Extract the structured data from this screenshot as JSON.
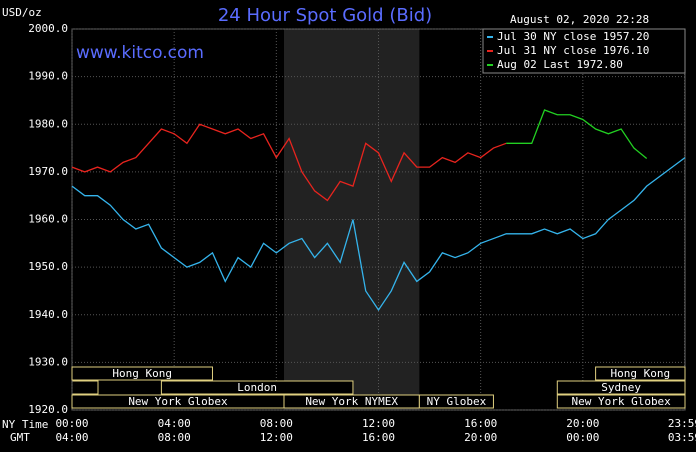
{
  "chart_data": {
    "type": "line",
    "title": "24 Hour Spot Gold (Bid)",
    "timestamp": "August 02, 2020 22:28",
    "site": "www.kitco.com",
    "y_label": "USD/oz",
    "x_label": "NY Time",
    "x2_label": "GMT",
    "x": [
      0,
      0.5,
      1,
      1.5,
      2,
      2.5,
      3,
      3.5,
      4,
      4.5,
      5,
      5.5,
      6,
      6.5,
      7,
      7.5,
      8,
      8.5,
      9,
      9.5,
      10,
      10.5,
      11,
      11.5,
      12,
      12.5,
      13,
      13.5,
      14,
      14.5,
      15,
      15.5,
      16,
      16.5,
      17,
      17.5,
      18,
      18.5,
      19,
      19.5,
      20,
      20.5,
      21,
      21.5,
      22,
      22.5,
      23,
      23.5,
      24
    ],
    "series": [
      {
        "name": "Jul 30 NY close 1957.20",
        "color": "#35b4ec",
        "values": [
          1967,
          1965,
          1965,
          1963,
          1960,
          1958,
          1959,
          1954,
          1952,
          1950,
          1951,
          1953,
          1947,
          1952,
          1950,
          1955,
          1953,
          1955,
          1956,
          1952,
          1955,
          1951,
          1960,
          1945,
          1941,
          1945,
          1951,
          1947,
          1949,
          1953,
          1952,
          1953,
          1955,
          1956,
          1957,
          1957,
          1957,
          1958,
          1957,
          1958,
          1956,
          1957,
          1960,
          1962,
          1964,
          1967,
          1969,
          1971,
          1973
        ]
      },
      {
        "name": "Jul 31 NY close 1976.10",
        "color": "#e8241e",
        "values": [
          1971,
          1970,
          1971,
          1970,
          1972,
          1973,
          1976,
          1979,
          1978,
          1976,
          1980,
          1979,
          1978,
          1979,
          1977,
          1978,
          1973,
          1977,
          1970,
          1966,
          1964,
          1968,
          1967,
          1976,
          1974,
          1968,
          1974,
          1971,
          1971,
          1973,
          1972,
          1974,
          1973,
          1975,
          1976,
          null,
          null,
          null,
          null,
          null,
          null,
          null,
          null,
          null,
          null,
          null,
          null,
          null,
          null
        ]
      },
      {
        "name": "Aug 02 Last 1972.80",
        "color": "#22d022",
        "values": [
          null,
          null,
          null,
          null,
          null,
          null,
          null,
          null,
          null,
          null,
          null,
          null,
          null,
          null,
          null,
          null,
          null,
          null,
          null,
          null,
          null,
          null,
          null,
          null,
          null,
          null,
          null,
          null,
          null,
          null,
          null,
          null,
          null,
          null,
          1976,
          1976,
          1976,
          1983,
          1982,
          1982,
          1981,
          1979,
          1978,
          1979,
          1975,
          1972.8,
          null,
          null,
          null
        ]
      }
    ],
    "ylim": [
      1920,
      2000
    ],
    "yticks": [
      {
        "value": 1920,
        "label": "1920.0"
      },
      {
        "value": 1930,
        "label": "1930.0"
      },
      {
        "value": 1940,
        "label": "1940.0"
      },
      {
        "value": 1950,
        "label": "1950.0"
      },
      {
        "value": 1960,
        "label": "1960.0"
      },
      {
        "value": 1970,
        "label": "1970.0"
      },
      {
        "value": 1980,
        "label": "1980.0"
      },
      {
        "value": 1990,
        "label": "1990.0"
      },
      {
        "value": 2000,
        "label": "2000.0"
      }
    ],
    "xlim": [
      0,
      24
    ],
    "xticks": [
      {
        "value": 0,
        "label": "00:00"
      },
      {
        "value": 4,
        "label": "04:00"
      },
      {
        "value": 8,
        "label": "08:00"
      },
      {
        "value": 12,
        "label": "12:00"
      },
      {
        "value": 16,
        "label": "16:00"
      },
      {
        "value": 20,
        "label": "20:00"
      },
      {
        "value": 23.98,
        "label": "23:59"
      }
    ],
    "x2ticks": [
      "04:00",
      "08:00",
      "12:00",
      "16:00",
      "20:00",
      "00:00",
      "03:59"
    ],
    "shade": [
      8.3,
      13.6
    ],
    "grid": true,
    "sessions": [
      {
        "label": "Hong Kong",
        "start": 0,
        "end": 5.5,
        "row": 0
      },
      {
        "label": "Hong Kong",
        "start": 20.5,
        "end": 24,
        "row": 0
      },
      {
        "label": "London",
        "start": 3.5,
        "end": 11,
        "row": 1
      },
      {
        "label": "Sydney",
        "start": 19,
        "end": 24,
        "row": 1
      },
      {
        "label": "New York Globex",
        "start": 0,
        "end": 8.3,
        "row": 2
      },
      {
        "label": "New York NYMEX",
        "start": 8.3,
        "end": 13.6,
        "row": 2
      },
      {
        "label": "NY Globex",
        "start": 13.6,
        "end": 16.5,
        "row": 2
      },
      {
        "label": "New York Globex",
        "start": 19,
        "end": 24,
        "row": 2
      }
    ]
  }
}
